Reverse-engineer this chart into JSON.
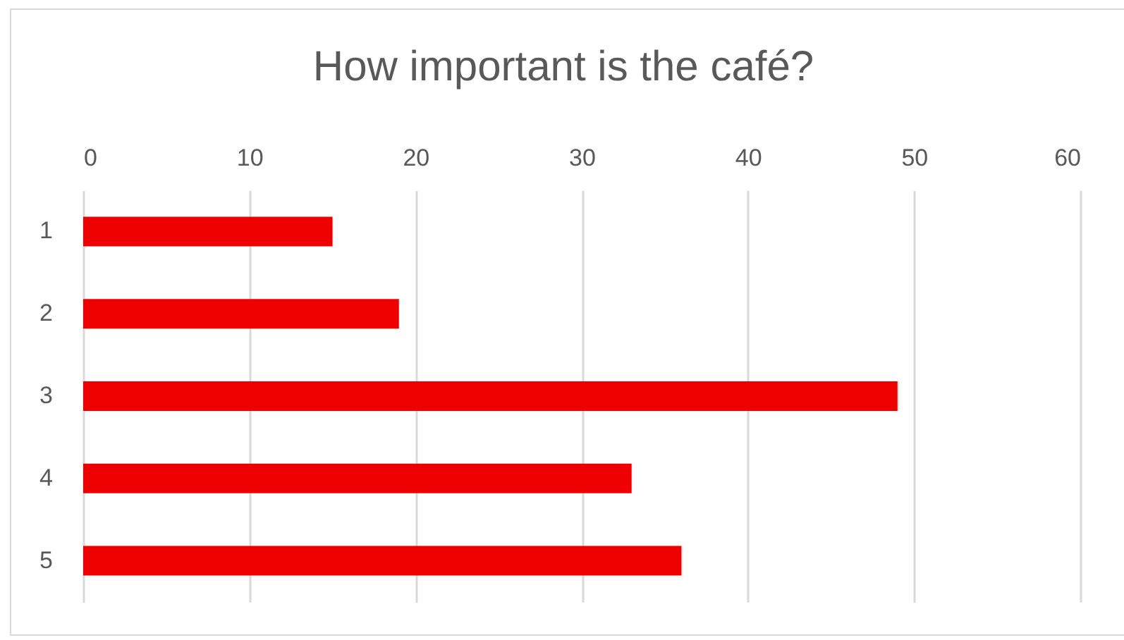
{
  "chart_data": {
    "type": "bar",
    "orientation": "horizontal",
    "title": "How important is the café?",
    "categories": [
      "1",
      "2",
      "3",
      "4",
      "5"
    ],
    "values": [
      15,
      19,
      49,
      33,
      36
    ],
    "color": "#ee0000",
    "xlim": [
      0,
      60
    ],
    "xticks": [
      0,
      10,
      20,
      30,
      40,
      50,
      60
    ],
    "grid": "x"
  }
}
